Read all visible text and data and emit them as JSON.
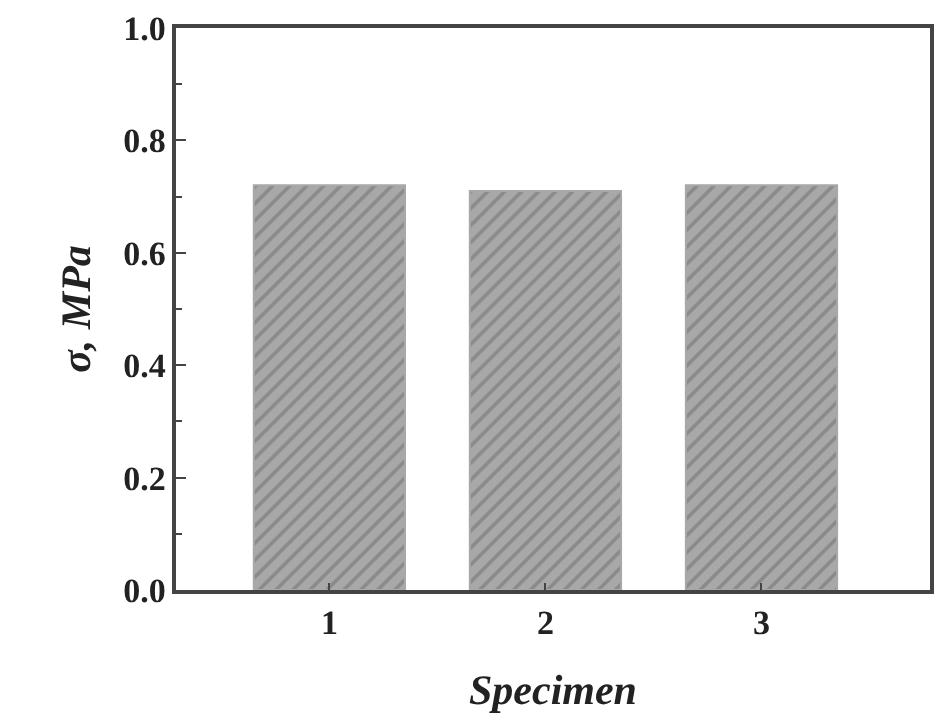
{
  "chart_data": {
    "type": "bar",
    "xlabel": "Specimen",
    "ylabel": "σ, MPa",
    "categories": [
      "1",
      "2",
      "3"
    ],
    "values": [
      0.72,
      0.71,
      0.72
    ],
    "color": "#a8a8a8",
    "ylim": [
      0,
      1
    ],
    "yticks": [
      {
        "value": 0,
        "label": "0.0"
      },
      {
        "value": 0.2,
        "label": "0.2"
      },
      {
        "value": 0.4,
        "label": "0.4"
      },
      {
        "value": 0.6,
        "label": "0.6"
      },
      {
        "value": 0.8,
        "label": "0.8"
      },
      {
        "value": 1,
        "label": "1.0"
      }
    ],
    "grid": false,
    "legend": false
  }
}
